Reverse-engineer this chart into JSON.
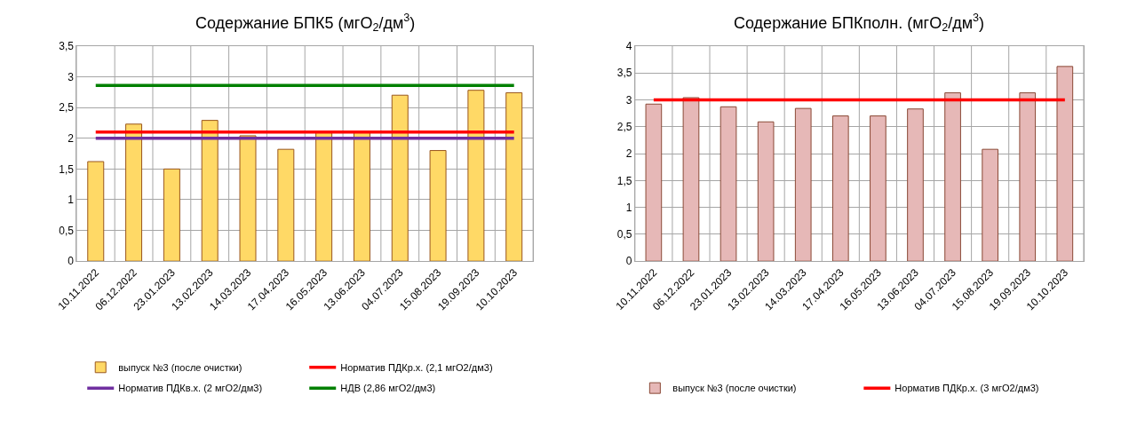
{
  "chart_data": [
    {
      "type": "bar",
      "title": "Содержание БПК5 (мгO$_{2}$/дм$^{3}$)",
      "categories": [
        "10.11.2022",
        "06.12.2022",
        "23.01.2023",
        "13.02.2023",
        "14.03.2023",
        "17.04.2023",
        "16.05.2023",
        "13.06.2023",
        "04.07.2023",
        "15.08.2023",
        "19.09.2023",
        "10.10.2023"
      ],
      "series": [
        {
          "name": "выпуск №3 (после очистки)",
          "color": "#ffd966",
          "values": [
            1.62,
            2.23,
            1.5,
            2.29,
            2.04,
            1.82,
            2.1,
            2.1,
            2.7,
            1.8,
            2.78,
            2.74
          ]
        },
        {
          "name": "Норматив ПДКр.х. (2,1 мгO2/дм3)",
          "type": "line",
          "color": "#ff0000",
          "values": [
            2.1,
            2.1,
            2.1,
            2.1,
            2.1,
            2.1,
            2.1,
            2.1,
            2.1,
            2.1,
            2.1,
            2.1
          ]
        },
        {
          "name": "Норматив ПДКв.х. (2 мгO2/дм3)",
          "type": "line",
          "color": "#7030a0",
          "values": [
            2,
            2,
            2,
            2,
            2,
            2,
            2,
            2,
            2,
            2,
            2,
            2
          ]
        },
        {
          "name": "НДВ (2,86 мгO2/дм3)",
          "type": "line",
          "color": "#008000",
          "values": [
            2.86,
            2.86,
            2.86,
            2.86,
            2.86,
            2.86,
            2.86,
            2.86,
            2.86,
            2.86,
            2.86,
            2.86
          ]
        }
      ],
      "ylim": [
        0,
        3.5
      ],
      "yticks": [
        0,
        {
          "value": 0.5,
          "label": "0,5"
        },
        1,
        {
          "value": 1.5,
          "label": "1,5"
        },
        2,
        {
          "value": 2.5,
          "label": "2,5"
        },
        3,
        {
          "value": 3.5,
          "label": "3,5"
        }
      ],
      "grid": true,
      "legend": "bottom",
      "marker": "none",
      "line_style": "solid"
    },
    {
      "type": "bar",
      "title": "Содержание БПКполн. (мгO$_{2}$/дм$^{3}$)",
      "categories": [
        "10.11.2022",
        "06.12.2022",
        "23.01.2023",
        "13.02.2023",
        "14.03.2023",
        "17.04.2023",
        "16.05.2023",
        "13.06.2023",
        "04.07.2023",
        "15.08.2023",
        "19.09.2023",
        "10.10.2023"
      ],
      "series": [
        {
          "name": "выпуск №3 (после очистки)",
          "color": "#e6b8b7",
          "values": [
            2.92,
            3.04,
            2.87,
            2.59,
            2.84,
            2.7,
            2.7,
            2.83,
            3.13,
            2.08,
            3.13,
            3.62
          ]
        },
        {
          "name": "Норматив ПДКр.х. (3 мгO2/дм3)",
          "type": "line",
          "color": "#ff0000",
          "values": [
            3,
            3,
            3,
            3,
            3,
            3,
            3,
            3,
            3,
            3,
            3,
            3
          ]
        }
      ],
      "ylim": [
        0,
        4
      ],
      "yticks": [
        0,
        {
          "value": 0.5,
          "label": "0,5"
        },
        1,
        {
          "value": 1.5,
          "label": "1,5"
        },
        2,
        {
          "value": 2.5,
          "label": "2,5"
        },
        3,
        {
          "value": 3.5,
          "label": "3,5"
        },
        4
      ],
      "grid": true,
      "legend": "bottom",
      "marker": "none",
      "line_style": "solid"
    }
  ]
}
